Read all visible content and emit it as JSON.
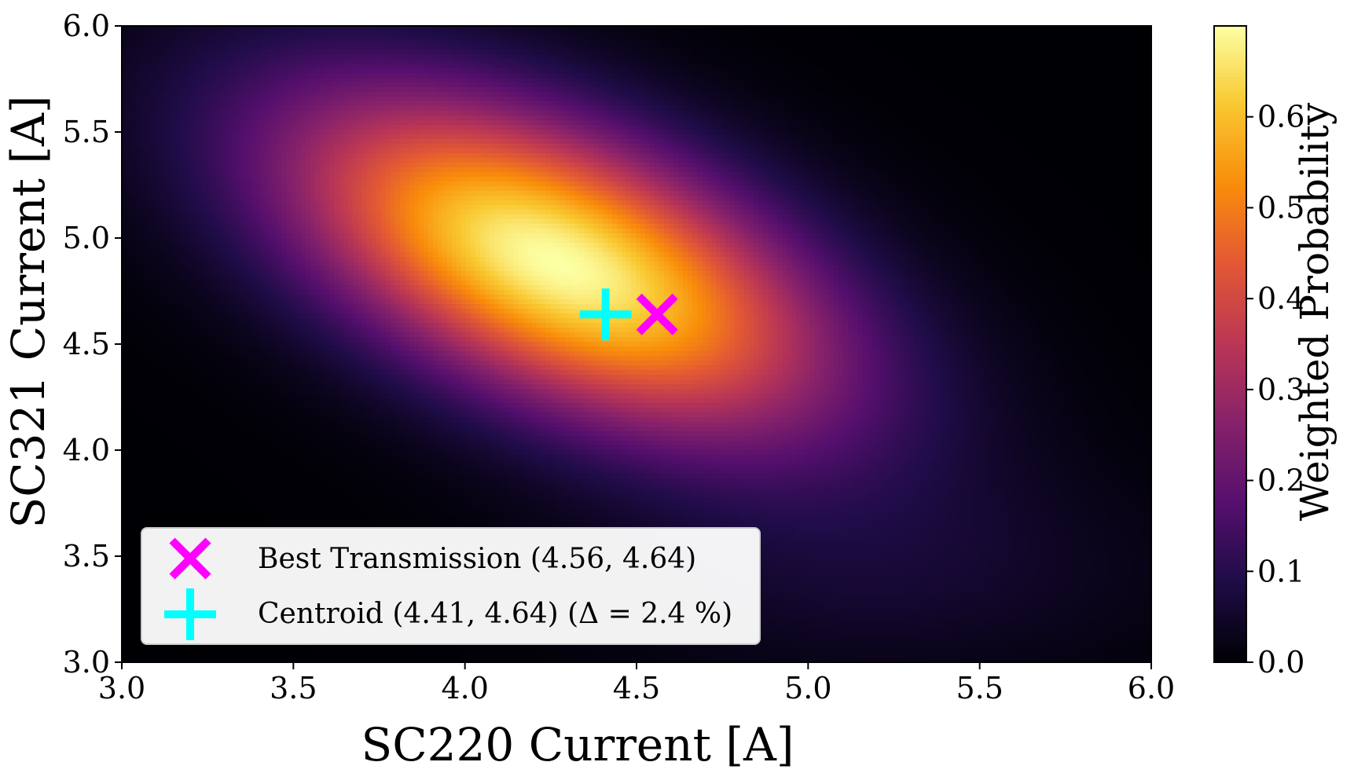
{
  "chart_data": {
    "type": "heatmap",
    "title": "",
    "xlabel": "SC220 Current [A]",
    "ylabel": "SC321 Current [A]",
    "xlim": [
      3.0,
      6.0
    ],
    "ylim": [
      3.0,
      6.0
    ],
    "x_ticks": [
      "3.0",
      "3.5",
      "4.0",
      "4.5",
      "5.0",
      "5.5",
      "6.0"
    ],
    "y_ticks": [
      "3.0",
      "3.5",
      "4.0",
      "4.5",
      "5.0",
      "5.5",
      "6.0"
    ],
    "grid": false,
    "colormap": "inferno",
    "colorbar": {
      "label": "Weighted Probability",
      "range": [
        0.0,
        0.7
      ],
      "ticks": [
        "0.0",
        "0.1",
        "0.2",
        "0.3",
        "0.4",
        "0.5",
        "0.6"
      ]
    },
    "density_peak": {
      "x": 4.27,
      "y": 4.88,
      "value": 0.7
    },
    "markers": [
      {
        "name": "Best Transmission (4.56, 4.64)",
        "x": 4.56,
        "y": 4.64,
        "symbol": "x",
        "color": "#ff00ff"
      },
      {
        "name": "Centroid (4.41, 4.64) (Δ = 2.4 %)",
        "x": 4.41,
        "y": 4.64,
        "symbol": "+",
        "color": "#00ffff"
      }
    ],
    "legend_placement": "lower-left"
  }
}
